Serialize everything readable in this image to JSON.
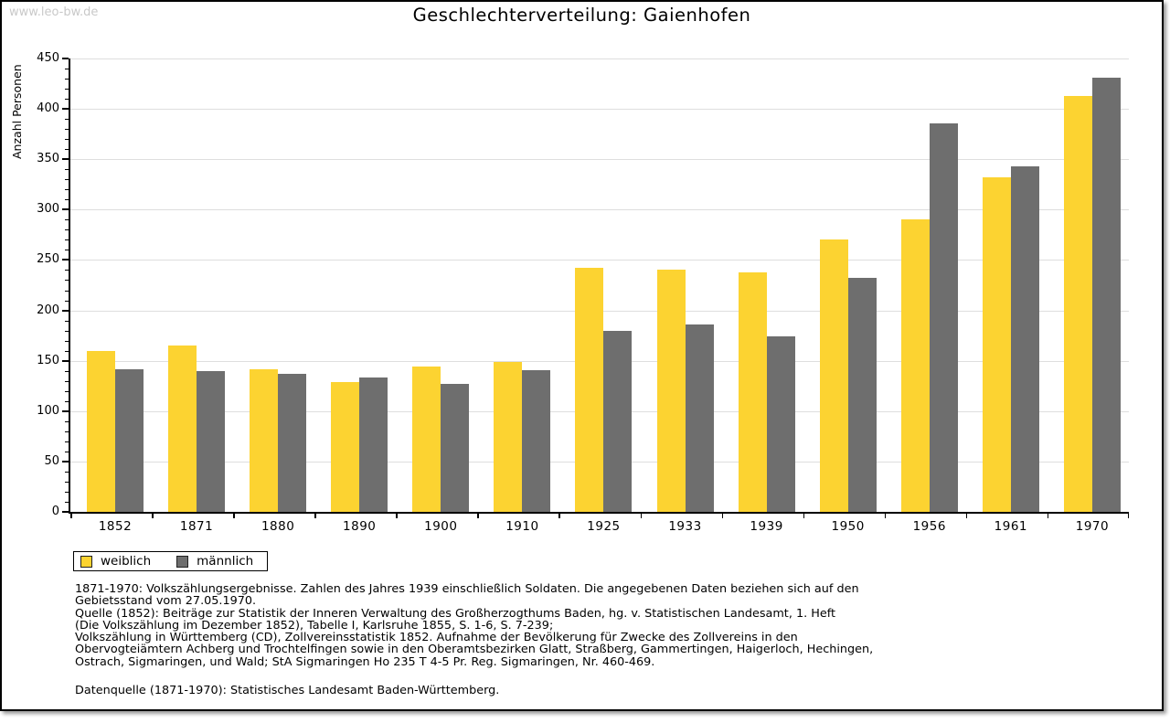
{
  "watermark": "www.leo-bw.de",
  "title": "Geschlechterverteilung: Gaienhofen",
  "chart_data": {
    "type": "bar",
    "title": "Geschlechterverteilung: Gaienhofen",
    "xlabel": "",
    "ylabel": "Anzahl Personen",
    "ylim": [
      0,
      450
    ],
    "ytick_step": 50,
    "minor_tick_step": 10,
    "grid": true,
    "legend_position": "bottom-left",
    "categories": [
      "1852",
      "1871",
      "1880",
      "1890",
      "1900",
      "1910",
      "1925",
      "1933",
      "1939",
      "1950",
      "1956",
      "1961",
      "1970"
    ],
    "series": [
      {
        "name": "weiblich",
        "color": "#fcd331",
        "values": [
          160,
          165,
          142,
          129,
          144,
          149,
          242,
          240,
          238,
          270,
          290,
          332,
          413
        ]
      },
      {
        "name": "männlich",
        "color": "#6e6e6e",
        "values": [
          142,
          140,
          137,
          133,
          127,
          141,
          180,
          186,
          174,
          232,
          386,
          343,
          431
        ]
      }
    ],
    "axis_color": "#000000",
    "gridline_color": "#dedede"
  },
  "legend": {
    "items": [
      {
        "label": "weiblich",
        "color": "#fcd331"
      },
      {
        "label": "männlich",
        "color": "#6e6e6e"
      }
    ]
  },
  "footnotes": [
    "1871-1970: Volkszählungsergebnisse. Zahlen des Jahres 1939 einschließlich Soldaten. Die angegebenen Daten beziehen sich auf den",
    "Gebietsstand vom 27.05.1970.",
    "Quelle (1852): Beiträge zur Statistik der Inneren Verwaltung des Großherzogthums Baden, hg. v. Statistischen Landesamt, 1. Heft",
    "(Die Volkszählung im Dezember 1852), Tabelle I, Karlsruhe 1855, S. 1-6, S. 7-239;",
    "Volkszählung in Württemberg (CD), Zollvereinsstatistik 1852. Aufnahme der Bevölkerung für Zwecke des Zollvereins in den",
    "Obervogteiämtern Achberg und Trochtelfingen sowie in den Oberamtsbezirken Glatt, Straßberg, Gammertingen, Haigerloch, Hechingen,",
    "Ostrach, Sigmaringen, und Wald; StA Sigmaringen Ho 235 T 4-5 Pr. Reg. Sigmaringen, Nr. 460-469."
  ],
  "datasource": "Datenquelle (1871-1970): Statistisches Landesamt Baden-Württemberg."
}
